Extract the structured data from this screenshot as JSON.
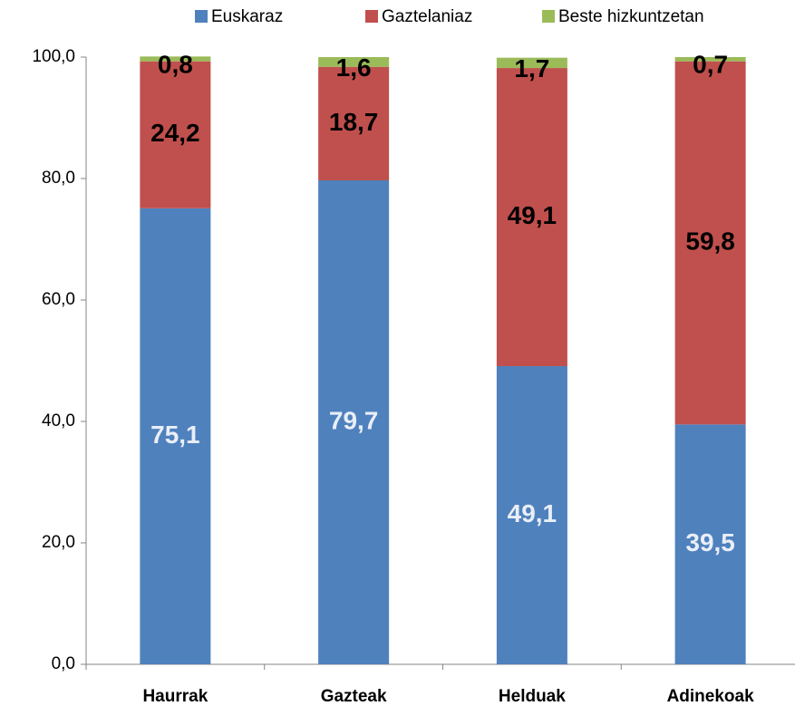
{
  "chart_data": {
    "type": "stacked_bar",
    "categories": [
      "Haurrak",
      "Gazteak",
      "Helduak",
      "Adinekoak"
    ],
    "series": [
      {
        "name": "Euskaraz",
        "color": "#4f81bd",
        "label_color": "#e9eef7",
        "values": [
          75.1,
          79.7,
          49.1,
          39.5
        ],
        "value_labels": [
          "75,1",
          "79,7",
          "49,1",
          "39,5"
        ]
      },
      {
        "name": "Gaztelaniaz",
        "color": "#c0504d",
        "label_color": "#000000",
        "values": [
          24.2,
          18.7,
          49.1,
          59.8
        ],
        "value_labels": [
          "24,2",
          "18,7",
          "49,1",
          "59,8"
        ]
      },
      {
        "name": "Beste hizkuntzetan",
        "color": "#9bbb59",
        "label_color": "#000000",
        "values": [
          0.8,
          1.6,
          1.7,
          0.7
        ],
        "value_labels": [
          "0,8",
          "1,6",
          "1,7",
          "0,7"
        ]
      }
    ],
    "ylim": [
      0,
      100
    ],
    "yticks": [
      {
        "value": 0,
        "label": "0,0"
      },
      {
        "value": 20,
        "label": "20,0"
      },
      {
        "value": 40,
        "label": "40,0"
      },
      {
        "value": 60,
        "label": "60,0"
      },
      {
        "value": 80,
        "label": "80,0"
      },
      {
        "value": 100,
        "label": "100,0"
      }
    ],
    "grid": false,
    "legend": "top"
  }
}
